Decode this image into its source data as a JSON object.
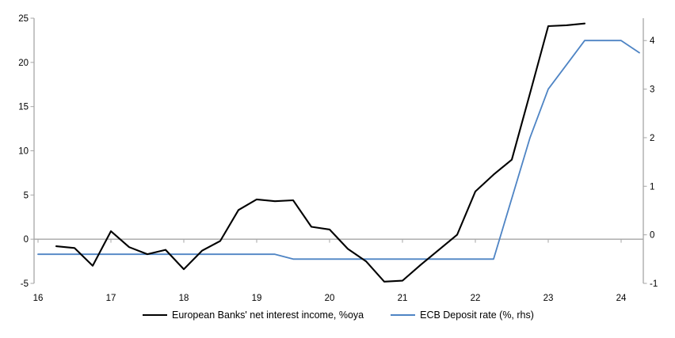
{
  "chart_data": {
    "type": "line",
    "title": "",
    "legend_position": "bottom",
    "grid": "zero-line-only",
    "x_axis": {
      "tick_positions": [
        16,
        17,
        18,
        19,
        20,
        21,
        22,
        23,
        24
      ],
      "tick_labels": [
        "16",
        "17",
        "18",
        "19",
        "20",
        "21",
        "22",
        "23",
        "24"
      ]
    },
    "left_axis": {
      "ticks": [
        25,
        20,
        15,
        10,
        5,
        0,
        -5
      ],
      "ylim": [
        -5,
        25
      ]
    },
    "right_axis": {
      "ticks": [
        4,
        3,
        2,
        1,
        0,
        -1
      ],
      "ylim": [
        -1,
        4.46
      ]
    },
    "axis_color": "#a6a6a6",
    "zero_line_color": "#a6a6a6",
    "series": [
      {
        "name": "European Banks' net interest income, %oya",
        "axis": "left",
        "color": "#000000",
        "width": 2.1,
        "x": [
          16.25,
          16.5,
          16.75,
          17.0,
          17.25,
          17.5,
          17.75,
          18.0,
          18.25,
          18.5,
          18.75,
          19.0,
          19.25,
          19.5,
          19.75,
          20.0,
          20.25,
          20.5,
          20.75,
          21.0,
          21.25,
          21.5,
          21.75,
          22.0,
          22.25,
          22.5,
          22.75,
          23.0,
          23.25,
          23.5
        ],
        "values": [
          -0.8,
          -1.0,
          -3.0,
          0.9,
          -0.9,
          -1.7,
          -1.2,
          -3.4,
          -1.3,
          -0.2,
          3.3,
          4.5,
          4.3,
          4.4,
          1.4,
          1.1,
          -1.1,
          -2.5,
          -4.8,
          -4.7,
          -2.9,
          -1.2,
          0.5,
          5.4,
          7.3,
          9.0,
          16.5,
          24.1,
          24.2,
          24.4
        ]
      },
      {
        "name": "ECB Deposit rate (%, rhs)",
        "axis": "right",
        "color": "#4e84c4",
        "width": 1.8,
        "x": [
          16.0,
          16.25,
          16.5,
          16.75,
          17.0,
          17.25,
          17.5,
          17.75,
          18.0,
          18.25,
          18.5,
          18.75,
          19.0,
          19.25,
          19.5,
          19.75,
          20.0,
          20.25,
          20.5,
          20.75,
          21.0,
          21.25,
          21.5,
          21.75,
          22.0,
          22.25,
          22.5,
          22.75,
          23.0,
          23.25,
          23.5,
          23.75,
          24.0,
          24.25
        ],
        "values": [
          -0.4,
          -0.4,
          -0.4,
          -0.4,
          -0.4,
          -0.4,
          -0.4,
          -0.4,
          -0.4,
          -0.4,
          -0.4,
          -0.4,
          -0.4,
          -0.4,
          -0.5,
          -0.5,
          -0.5,
          -0.5,
          -0.5,
          -0.5,
          -0.5,
          -0.5,
          -0.5,
          -0.5,
          -0.5,
          -0.5,
          0.75,
          2.0,
          3.0,
          3.5,
          4.0,
          4.0,
          4.0,
          3.75
        ]
      }
    ]
  }
}
